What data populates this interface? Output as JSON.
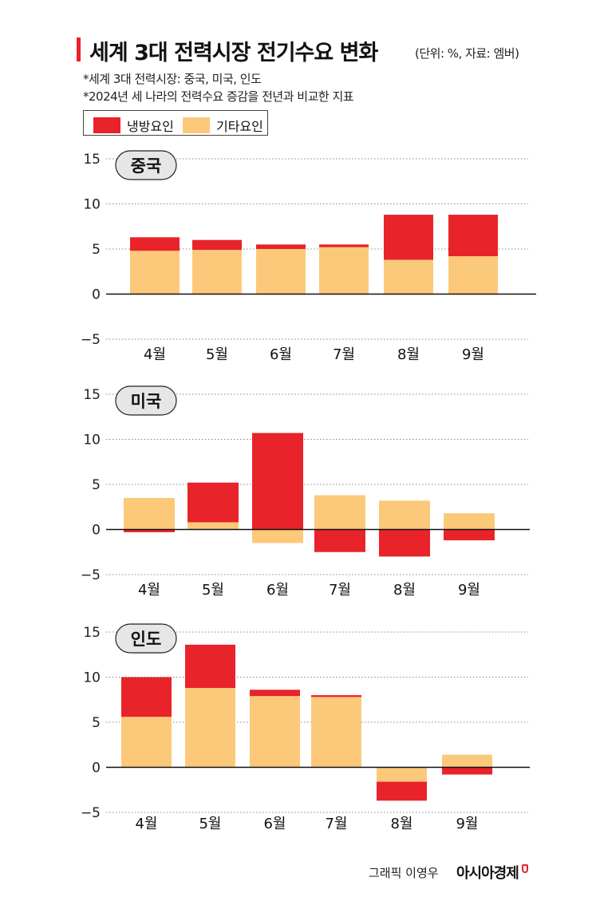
{
  "title": "세계 3대 전력시장 전기수요 변화",
  "unit": "(단위: %, 자료: 엠버)",
  "notes": [
    "*세계 3대 전력시장: 중국, 미국, 인도",
    "*2024년 세 나라의 전력수요 증감을 전년과 비교한 지표"
  ],
  "legend": [
    {
      "label": "냉방요인",
      "color": "#e8232a"
    },
    {
      "label": "기타요인",
      "color": "#fcc97a"
    }
  ],
  "credit": "그래픽 이영우",
  "brand": "아시아경제",
  "chart_data": [
    {
      "type": "bar",
      "title": "중국",
      "categories": [
        "4월",
        "5월",
        "6월",
        "7월",
        "8월",
        "9월"
      ],
      "yticks": [
        "15",
        "10",
        "5",
        "0",
        "−5"
      ],
      "ylim": [
        -5,
        15
      ],
      "series": [
        {
          "name": "기타요인",
          "values": [
            4.8,
            4.9,
            5.0,
            5.2,
            3.8,
            4.2
          ]
        },
        {
          "name": "냉방요인",
          "values": [
            1.5,
            1.1,
            0.5,
            0.3,
            5.0,
            4.6
          ]
        }
      ]
    },
    {
      "type": "bar",
      "title": "미국",
      "categories": [
        "4월",
        "5월",
        "6월",
        "7월",
        "8월",
        "9월"
      ],
      "yticks": [
        "15",
        "10",
        "5",
        "0",
        "−5"
      ],
      "ylim": [
        -5,
        15
      ],
      "series": [
        {
          "name": "기타요인",
          "values": [
            3.5,
            0.8,
            -1.5,
            3.8,
            3.2,
            1.8
          ]
        },
        {
          "name": "냉방요인",
          "values": [
            -0.3,
            4.4,
            10.7,
            -2.5,
            -3.0,
            -1.2
          ]
        }
      ]
    },
    {
      "type": "bar",
      "title": "인도",
      "categories": [
        "4월",
        "5월",
        "6월",
        "7월",
        "8월",
        "9월"
      ],
      "yticks": [
        "15",
        "10",
        "5",
        "0",
        "−5"
      ],
      "ylim": [
        -5,
        15
      ],
      "series": [
        {
          "name": "기타요인",
          "values": [
            5.6,
            8.8,
            7.9,
            7.8,
            -1.6,
            1.4
          ]
        },
        {
          "name": "냉방요인",
          "values": [
            4.4,
            4.8,
            0.7,
            0.2,
            -2.1,
            -0.8
          ]
        }
      ]
    }
  ]
}
